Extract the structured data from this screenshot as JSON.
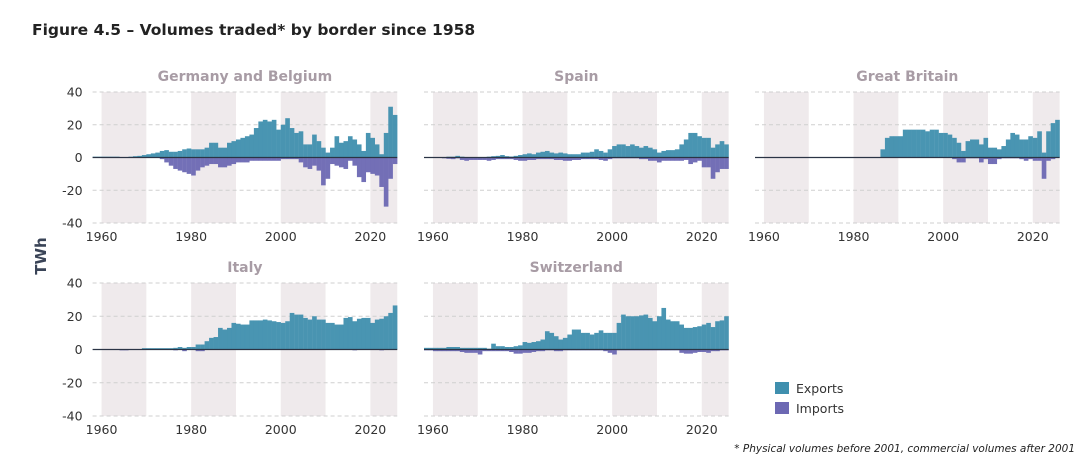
{
  "chart_data": {
    "type": "bar",
    "title": "Figure 4.5 – Volumes traded* by border since 1958",
    "ylabel": "TWh",
    "ylim": [
      -40,
      40
    ],
    "yticks": [
      "40",
      "20",
      "0",
      "-20",
      "-40"
    ],
    "xticks": [
      "1960",
      "1980",
      "2000",
      "2020"
    ],
    "xlim": [
      1958,
      2026
    ],
    "years_start": 1958,
    "years_end": 2025,
    "grid": true,
    "legend": {
      "placement": "bottom-right",
      "entries": [
        "Exports",
        "Imports"
      ]
    },
    "colors": {
      "Exports": "#3f8fae",
      "Imports": "#6c68b3",
      "band": "#efeaec",
      "zero": "#2b3445"
    },
    "shaded_decades": [
      [
        1960,
        1970
      ],
      [
        1980,
        1990
      ],
      [
        2000,
        2010
      ],
      [
        2020,
        2026
      ]
    ],
    "footnote": "* Physical volumes before 2001, commercial volumes after 2001",
    "panels": [
      {
        "title": "Germany and Belgium",
        "series": [
          {
            "name": "Exports",
            "values": [
              0.5,
              0.5,
              0.5,
              0.5,
              0.5,
              0.5,
              0.3,
              0.3,
              0.5,
              0.8,
              1,
              1.5,
              2,
              2.5,
              3,
              4,
              4.5,
              3.5,
              3.5,
              4,
              5,
              5.5,
              5,
              5,
              5,
              6,
              9,
              9,
              6,
              6,
              9,
              10,
              11,
              12,
              13,
              14,
              18,
              22,
              23,
              22,
              23,
              17,
              20,
              24,
              18,
              15,
              16,
              8,
              8,
              14,
              10,
              6,
              3,
              6,
              13,
              9,
              10,
              13,
              11,
              8,
              4,
              15,
              12,
              8,
              2,
              15,
              31,
              26
            ]
          },
          {
            "name": "Imports",
            "values": [
              0,
              0,
              0,
              0,
              0,
              0,
              0,
              0,
              0,
              0,
              0,
              0,
              0,
              0,
              0,
              -1,
              -3,
              -5,
              -7,
              -8,
              -9,
              -10,
              -11,
              -8,
              -6,
              -5,
              -4,
              -4,
              -6,
              -6,
              -5,
              -4,
              -3,
              -3,
              -3,
              -2,
              -2,
              -2,
              -2,
              -2,
              -2,
              -2,
              -1,
              -1,
              -1,
              -1,
              -3,
              -6,
              -7,
              -5,
              -8,
              -17,
              -13,
              -4,
              -5,
              -6,
              -7,
              -2,
              -5,
              -12,
              -15,
              -9,
              -10,
              -11,
              -18,
              -30,
              -13,
              -4
            ]
          }
        ]
      },
      {
        "title": "Spain",
        "series": [
          {
            "name": "Exports",
            "values": [
              0.3,
              0.2,
              0.2,
              0.3,
              0.3,
              0.5,
              0.5,
              1,
              0.5,
              0.3,
              0.3,
              0.3,
              0.3,
              0.3,
              0.5,
              0.8,
              1,
              1.5,
              0.8,
              0.6,
              1,
              1.5,
              2,
              2.5,
              2,
              3,
              3.5,
              4,
              3,
              2.5,
              3,
              2.5,
              2,
              2,
              2,
              3,
              3,
              3.5,
              5,
              4,
              3,
              5,
              7,
              8,
              8,
              7,
              8,
              7,
              6,
              7,
              6,
              5,
              3,
              4,
              4.5,
              4.5,
              5,
              8,
              11,
              15,
              15,
              13,
              12,
              12,
              6,
              8,
              10,
              8
            ]
          },
          {
            "name": "Imports",
            "values": [
              0,
              0,
              0,
              -0.3,
              -0.5,
              -0.8,
              -1,
              -0.5,
              -1.5,
              -2,
              -1.5,
              -1.5,
              -1.5,
              -1.5,
              -2,
              -1.5,
              -1,
              -1,
              -1,
              -1,
              -1.5,
              -2,
              -2,
              -1.5,
              -1.5,
              -1,
              -1,
              -1,
              -1,
              -1.5,
              -1.5,
              -2,
              -2,
              -1.5,
              -1.5,
              -1,
              -1,
              -1,
              -1,
              -1.5,
              -2,
              -1,
              -0.5,
              -0.5,
              -0.5,
              -0.5,
              -0.5,
              -0.5,
              -1,
              -1,
              -2,
              -2,
              -3,
              -2,
              -2,
              -2,
              -2,
              -2,
              -1.5,
              -4,
              -3,
              -2,
              -6,
              -6,
              -13,
              -9,
              -7,
              -7
            ]
          }
        ]
      },
      {
        "title": "Great Britain",
        "series": [
          {
            "name": "Exports",
            "values": [
              0,
              0,
              0,
              0,
              0,
              0,
              0,
              0,
              0.3,
              0.3,
              0.3,
              0.3,
              0.3,
              0.3,
              0.3,
              0,
              0,
              0,
              0,
              0,
              0,
              0,
              0,
              0,
              0,
              0,
              0,
              0,
              5,
              12,
              13,
              13,
              13,
              17,
              17,
              17,
              17,
              17,
              16,
              17,
              17,
              15,
              15,
              14,
              12,
              9,
              4,
              10,
              11,
              11,
              8,
              12,
              6,
              6,
              5,
              7,
              11,
              15,
              14,
              11,
              11,
              13,
              12,
              16,
              3,
              16,
              21,
              23
            ]
          },
          {
            "name": "Imports",
            "values": [
              0,
              0,
              0,
              0,
              0,
              0,
              0,
              0,
              0,
              0,
              0,
              0,
              0,
              0,
              0,
              0,
              0,
              0,
              0,
              0,
              0,
              0,
              0,
              0,
              0,
              0,
              0,
              0,
              0,
              0,
              0,
              0,
              0,
              0,
              0,
              0,
              0,
              0,
              0,
              0,
              0,
              0,
              0,
              0,
              -1,
              -3,
              -3,
              -0.5,
              -0.5,
              -0.5,
              -3,
              -1,
              -4,
              -4,
              -1,
              -0.5,
              -0.5,
              -0.5,
              -0.5,
              -1,
              -2,
              -1,
              -2,
              -2,
              -13,
              -2,
              -1,
              0
            ]
          }
        ]
      },
      {
        "title": "Italy",
        "series": [
          {
            "name": "Exports",
            "values": [
              0,
              0,
              0,
              0,
              0,
              0,
              0,
              0,
              0,
              0,
              0,
              0.8,
              0.8,
              0.8,
              0.8,
              0.8,
              0.8,
              0.8,
              1,
              1.5,
              1,
              1.5,
              1.5,
              3,
              3,
              5,
              7,
              7.5,
              13,
              12,
              13,
              16,
              15.5,
              15,
              15,
              17.5,
              17.5,
              17.5,
              18,
              17.5,
              17,
              16.5,
              16,
              17,
              22,
              21,
              21,
              19,
              18,
              20,
              18,
              18,
              16,
              16,
              15,
              15,
              19,
              19.5,
              17,
              18.5,
              19,
              19,
              16,
              18,
              18.5,
              20,
              22,
              26.5
            ]
          },
          {
            "name": "Imports",
            "values": [
              0,
              0,
              0,
              0,
              0,
              0,
              -0.5,
              -0.5,
              0,
              0,
              0,
              0,
              0,
              0,
              0,
              0,
              0,
              0,
              -0.5,
              0,
              -1,
              0,
              0,
              -1,
              -1,
              0,
              0,
              0,
              0,
              0,
              0,
              0,
              0,
              0,
              0,
              0,
              0,
              0,
              0,
              0,
              0,
              0,
              0,
              0,
              0,
              0,
              0,
              0,
              0,
              0,
              0,
              0,
              0,
              0,
              0,
              0,
              0,
              0,
              -0.5,
              0,
              0,
              0,
              0,
              0,
              -0.5,
              0,
              0,
              0
            ]
          }
        ]
      },
      {
        "title": "Switzerland",
        "series": [
          {
            "name": "Exports",
            "values": [
              1,
              1,
              1,
              1,
              1,
              1.5,
              1.5,
              1.5,
              1,
              1,
              1,
              1,
              1,
              1,
              0.5,
              3.5,
              2,
              2,
              1.5,
              1.5,
              2,
              2.5,
              4.5,
              4,
              4.5,
              5,
              6,
              11,
              10,
              8,
              6,
              7,
              9,
              12,
              12,
              10,
              10,
              9,
              10,
              11.5,
              10,
              10,
              10,
              16,
              21,
              20,
              20,
              20,
              20.5,
              21,
              19,
              17,
              20,
              25,
              18,
              17,
              17,
              15,
              13,
              13,
              13.5,
              14,
              15,
              16,
              13.5,
              17,
              17.5,
              20
            ]
          },
          {
            "name": "Imports",
            "values": [
              -0.5,
              -0.5,
              -1,
              -1,
              -1,
              -1,
              -1,
              -1,
              -1.5,
              -2,
              -2,
              -2,
              -3,
              -1,
              -1,
              -1,
              -1,
              -1,
              -1,
              -1.5,
              -2.5,
              -2.5,
              -2,
              -2,
              -1.5,
              -1,
              -1,
              -0.5,
              -0.5,
              -1,
              -1,
              -0.5,
              -0.5,
              -0.5,
              -0.5,
              -0.5,
              -0.5,
              -0.5,
              -0.5,
              -0.5,
              -1,
              -2,
              -3,
              -0.5,
              -0.5,
              -0.5,
              -0.5,
              -0.5,
              -0.5,
              -0.5,
              -0.5,
              -0.5,
              -0.5,
              -0.5,
              -0.5,
              -0.5,
              -0.5,
              -2,
              -2.5,
              -2.5,
              -2,
              -1.5,
              -1.5,
              -2,
              -1,
              -1,
              -0.5,
              -0.5
            ]
          }
        ]
      }
    ]
  }
}
